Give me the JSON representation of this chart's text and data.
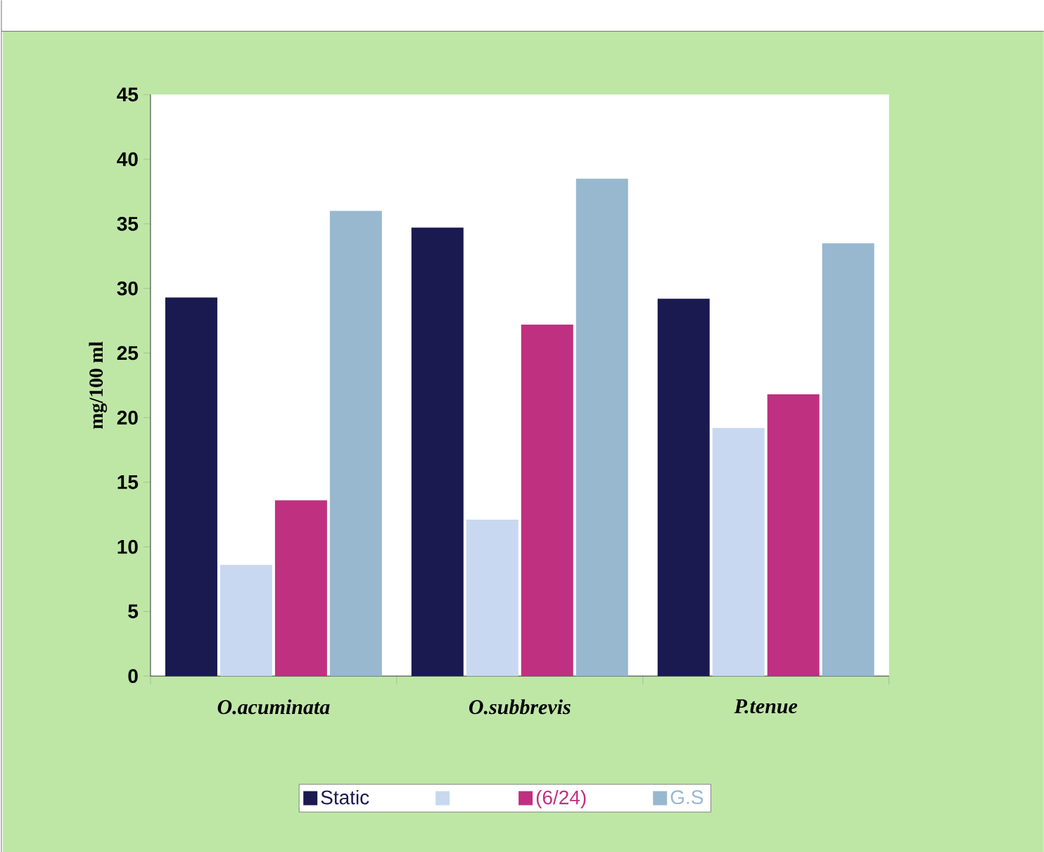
{
  "chart_data": {
    "type": "bar",
    "ylabel": "mg/100 ml",
    "categories": [
      "*O.acuminata*",
      "*O.subbrevis*",
      "*P.tenue*"
    ],
    "series": [
      {
        "name": "Static",
        "color": "#1a1a50",
        "values": [
          29.3,
          34.7,
          29.2
        ]
      },
      {
        "color": "#c8d8f0",
        "values": [
          8.6,
          12.1,
          19.2
        ]
      },
      {
        "name": "(6/24)",
        "color": "#c03080",
        "values": [
          13.6,
          27.2,
          21.8
        ]
      },
      {
        "name": "G.S",
        "color": "#98b8d0",
        "values": [
          36.0,
          38.5,
          33.5
        ]
      }
    ],
    "ylim": [
      0,
      45
    ],
    "yticks": [
      0,
      5,
      10,
      15,
      20,
      25,
      30,
      35,
      40,
      45
    ],
    "grid": false,
    "legend": "bottom"
  }
}
